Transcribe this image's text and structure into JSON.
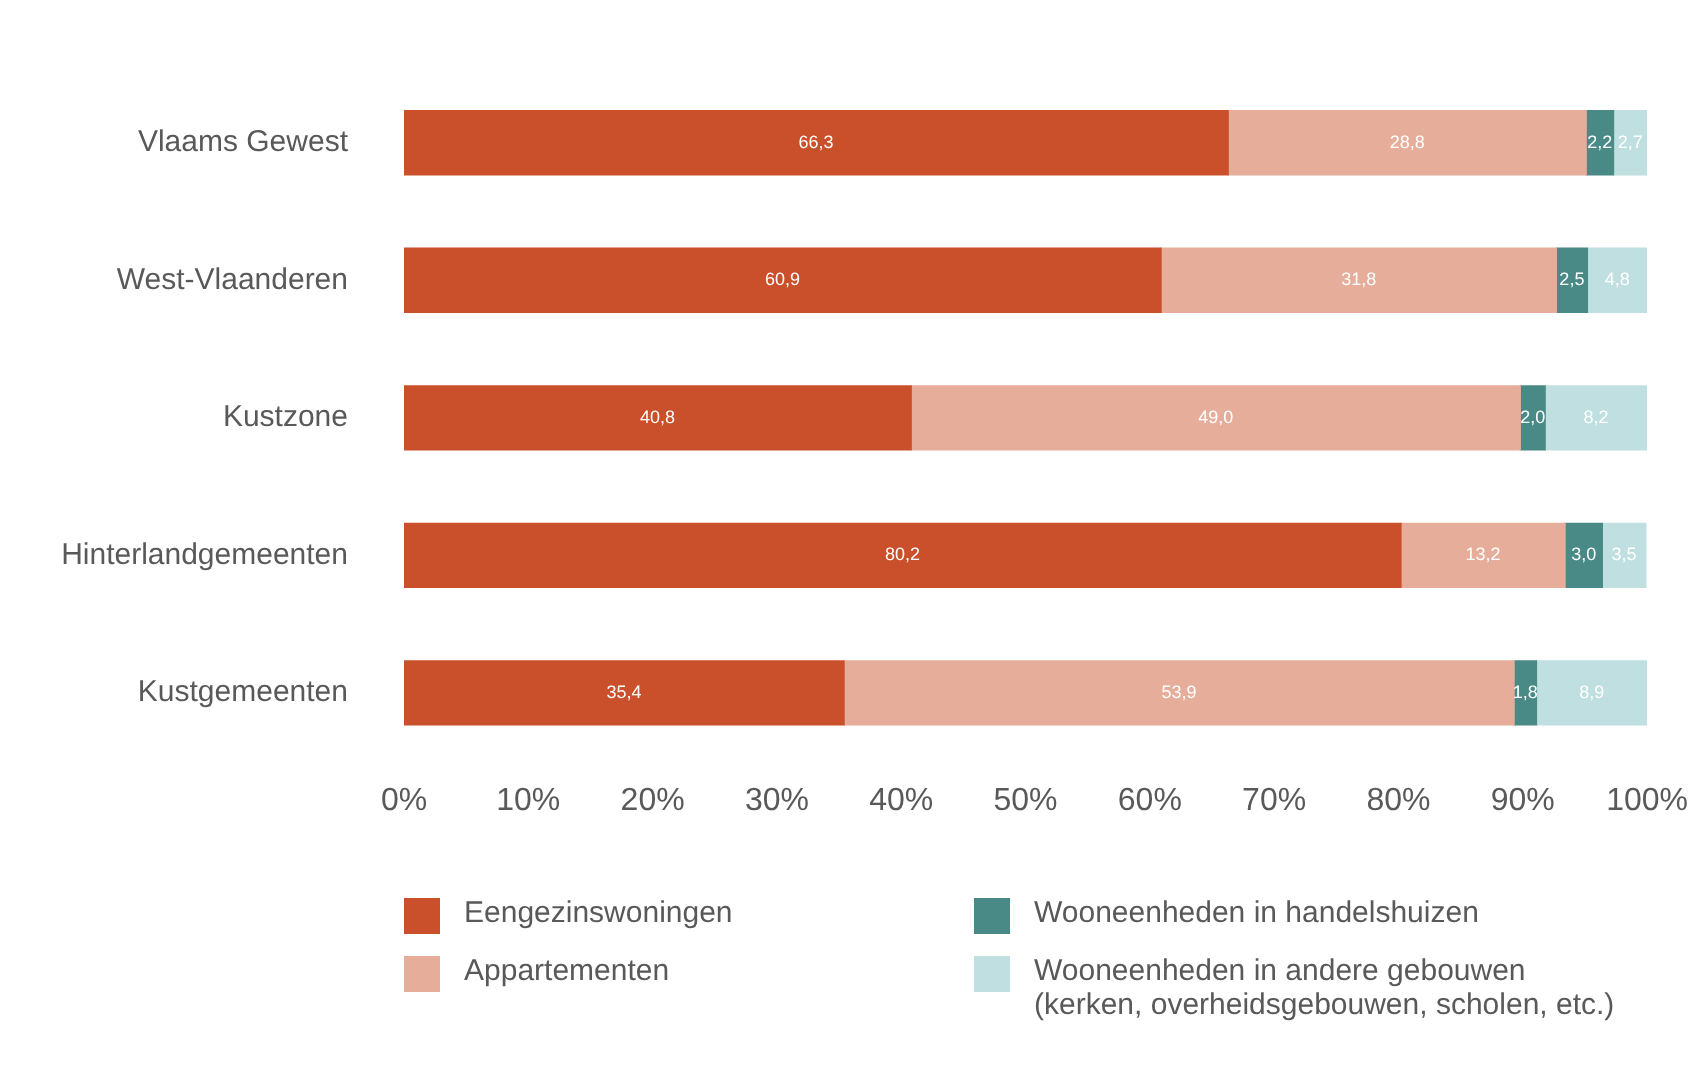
{
  "chart_data": {
    "type": "bar",
    "orientation": "horizontal",
    "stacked": true,
    "categories": [
      "Vlaams Gewest",
      "West-Vlaanderen",
      "Kustzone",
      "Hinterlandgemeenten",
      "Kustgemeenten"
    ],
    "series": [
      {
        "name": "Eengezinswoningen",
        "color": "#c9502a",
        "values": [
          66.3,
          60.9,
          40.8,
          80.2,
          35.4
        ],
        "value_labels": [
          "66,3",
          "60,9",
          "40,8",
          "80,2",
          "35,4"
        ]
      },
      {
        "name": "Appartementen",
        "color": "#e6ae9a",
        "values": [
          28.8,
          31.8,
          49.0,
          13.2,
          53.9
        ],
        "value_labels": [
          "28,8",
          "31,8",
          "49,0",
          "13,2",
          "53,9"
        ]
      },
      {
        "name": "Wooneenheden in handelshuizen",
        "color": "#4a8a86",
        "values": [
          2.2,
          2.5,
          2.0,
          3.0,
          1.8
        ],
        "value_labels": [
          "2,2",
          "2,5",
          "2,0",
          "3,0",
          "1,8"
        ]
      },
      {
        "name": "Wooneenheden in andere gebouwen (kerken, overheidsgebouwen, scholen, etc.)",
        "color": "#bfdfe0",
        "values": [
          2.7,
          4.8,
          8.2,
          3.5,
          8.9
        ],
        "value_labels": [
          "2,7",
          "4,8",
          "8,2",
          "3,5",
          "8,9"
        ]
      }
    ],
    "xlim": [
      0,
      100
    ],
    "xticks": [
      {
        "value": 0,
        "label": "0%"
      },
      {
        "value": 10,
        "label": "10%"
      },
      {
        "value": 20,
        "label": "20%"
      },
      {
        "value": 30,
        "label": "30%"
      },
      {
        "value": 40,
        "label": "40%"
      },
      {
        "value": 50,
        "label": "50%"
      },
      {
        "value": 60,
        "label": "60%"
      },
      {
        "value": 70,
        "label": "70%"
      },
      {
        "value": 80,
        "label": "80%"
      },
      {
        "value": 90,
        "label": "90%"
      },
      {
        "value": 100,
        "label": "100%"
      }
    ],
    "grid": false,
    "legend": "bottom"
  }
}
